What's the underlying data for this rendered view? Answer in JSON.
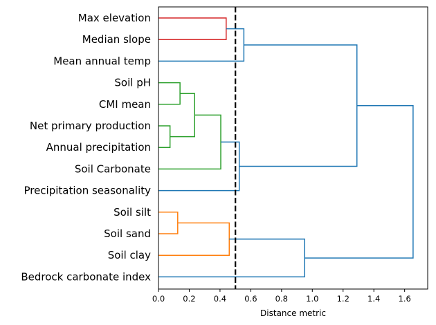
{
  "chart_data": {
    "type": "dendrogram",
    "orientation": "horizontal",
    "title": "",
    "xlabel": "Distance metric",
    "ylabel": "",
    "xlim": [
      0.0,
      1.75
    ],
    "xticks": [
      "0.0",
      "0.2",
      "0.4",
      "0.6",
      "0.8",
      "1.0",
      "1.2",
      "1.4",
      "1.6"
    ],
    "grid": false,
    "leaves": [
      "Max elevation",
      "Median slope",
      "Mean annual temp",
      "Soil pH",
      "CMI mean",
      "Net primary production",
      "Annual precipitation",
      "Soil Carbonate",
      "Precipitation seasonality",
      "Soil silt",
      "Soil sand",
      "Soil clay",
      "Bedrock carbonate index"
    ],
    "merges": [
      {
        "id": "c1",
        "children": [
          "Max elevation",
          "Median slope"
        ],
        "distance": 0.44,
        "color": "#d62728"
      },
      {
        "id": "c2",
        "children": [
          "c1",
          "Mean annual temp"
        ],
        "distance": 0.555,
        "color": "#1f77b4"
      },
      {
        "id": "c3",
        "children": [
          "Soil pH",
          "CMI mean"
        ],
        "distance": 0.14,
        "color": "#2ca02c"
      },
      {
        "id": "c4",
        "children": [
          "Net primary production",
          "Annual precipitation"
        ],
        "distance": 0.075,
        "color": "#2ca02c"
      },
      {
        "id": "c5",
        "children": [
          "c3",
          "c4"
        ],
        "distance": 0.235,
        "color": "#2ca02c"
      },
      {
        "id": "c6",
        "children": [
          "c5",
          "Soil Carbonate"
        ],
        "distance": 0.405,
        "color": "#2ca02c"
      },
      {
        "id": "c7",
        "children": [
          "c6",
          "Precipitation seasonality"
        ],
        "distance": 0.525,
        "color": "#1f77b4"
      },
      {
        "id": "c8",
        "children": [
          "c2",
          "c7"
        ],
        "distance": 1.29,
        "color": "#1f77b4"
      },
      {
        "id": "c9",
        "children": [
          "Soil silt",
          "Soil sand"
        ],
        "distance": 0.125,
        "color": "#ff7f0e"
      },
      {
        "id": "c10",
        "children": [
          "c9",
          "Soil clay"
        ],
        "distance": 0.46,
        "color": "#ff7f0e"
      },
      {
        "id": "c11",
        "children": [
          "c10",
          "Bedrock carbonate index"
        ],
        "distance": 0.95,
        "color": "#1f77b4"
      },
      {
        "id": "c12",
        "children": [
          "c8",
          "c11"
        ],
        "distance": 1.655,
        "color": "#1f77b4"
      }
    ],
    "leaf_link_color": "#1f77b4",
    "threshold": {
      "value": 0.5,
      "style": "dashed",
      "color": "#000000"
    }
  }
}
